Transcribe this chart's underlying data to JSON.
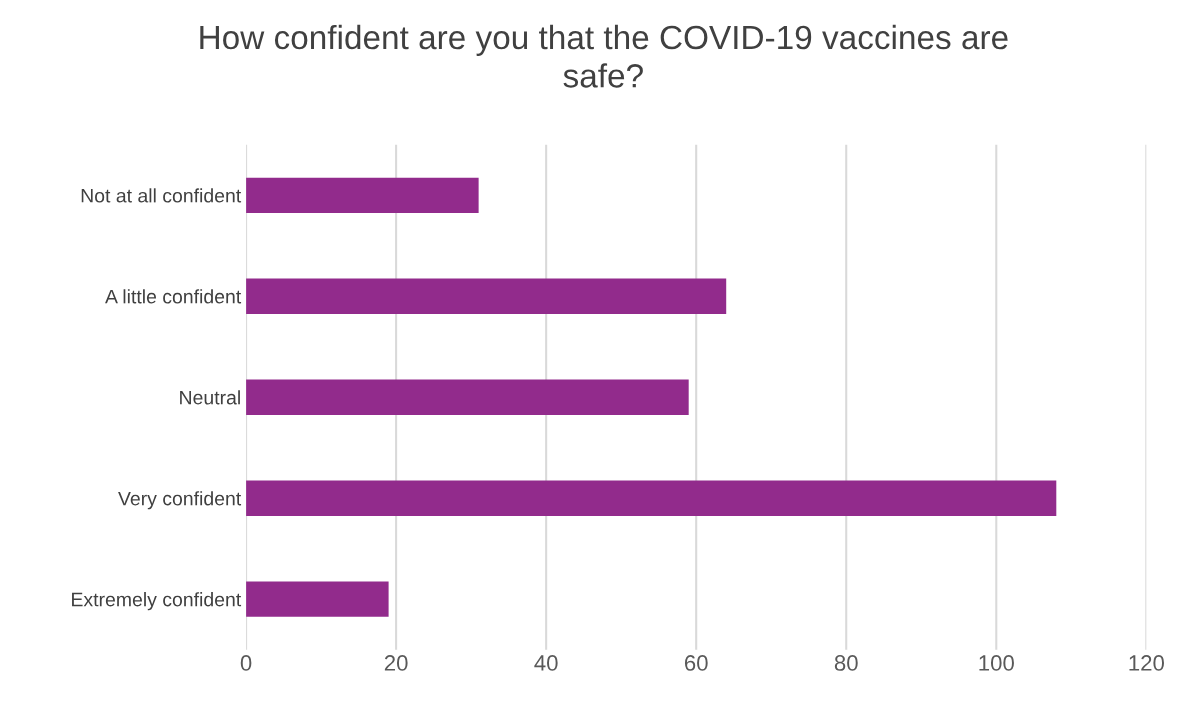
{
  "chart_data": {
    "type": "bar",
    "orientation": "horizontal",
    "title": "How confident are you that the COVID-19 vaccines are safe?",
    "categories": [
      "Not at all confident",
      "A little confident",
      "Neutral",
      "Very confident",
      "Extremely confident"
    ],
    "values": [
      31,
      64,
      59,
      108,
      19
    ],
    "color": "#922b8c",
    "xlim": [
      0,
      120
    ],
    "xticks": [
      0,
      20,
      40,
      60,
      80,
      100,
      120
    ],
    "grid": "x",
    "legend": false
  }
}
